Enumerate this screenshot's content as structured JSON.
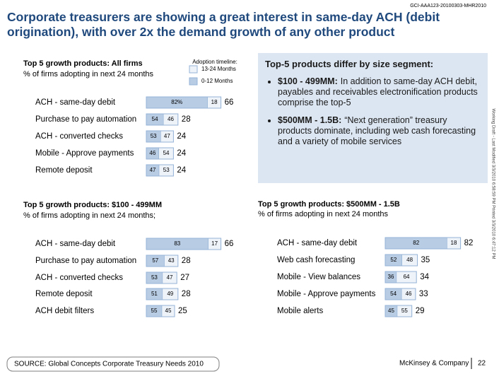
{
  "header": {
    "doc_id": "GCI-AAA123-20100303-MHR2010",
    "title": "Corporate treasurers are showing a great interest in same-day ACH (debit origination), with over 2x the demand growth of any other product"
  },
  "side_note": "Working Draft - Last Modified 3/3/2010 6:58:59 PM     Printed 3/3/2010 6:47:12 PM",
  "segment_box": {
    "title": "Top-5 products differ by size segment:",
    "bullets": [
      {
        "label": "$100 - 499MM:",
        "text": "In addition to same-day ACH debit, payables and receivables electronification products comprise the top-5"
      },
      {
        "label": "$500MM - 1.5B:",
        "text": "“Next generation” treasury products dominate, including web cash forecasting and a variety of mobile services"
      }
    ]
  },
  "chart_data": [
    {
      "type": "bar",
      "title": "Top 5 growth products:  All firms",
      "subtitle": "% of firms adopting in next 24 months",
      "legend_title": "Adoption timeline:",
      "categories": [
        "ACH - same-day debit",
        "Purchase to pay automation",
        "ACH - converted checks",
        "Mobile - Approve payments",
        "Remote deposit"
      ],
      "values": [
        66,
        28,
        24,
        24,
        24
      ],
      "series": [
        {
          "name": "0-12 Months",
          "color": "#b8cce4",
          "values": [
            82,
            54,
            53,
            46,
            47
          ],
          "value_labels": [
            "82%",
            "54",
            "53",
            "46",
            "47"
          ]
        },
        {
          "name": "13-24 Months",
          "color": "#eef3fa",
          "values": [
            18,
            46,
            47,
            54,
            53
          ]
        }
      ]
    },
    {
      "type": "bar",
      "title": "Top 5 growth products: $100 - 499MM",
      "subtitle": "% of firms adopting in next 24 months;",
      "categories": [
        "ACH - same-day debit",
        "Purchase to pay automation",
        "ACH - converted checks",
        "Remote deposit",
        "ACH debit filters"
      ],
      "values": [
        66,
        28,
        27,
        28,
        25
      ],
      "series": [
        {
          "color": "#b8cce4",
          "values": [
            83,
            57,
            53,
            51,
            55
          ]
        },
        {
          "color": "#eef3fa",
          "values": [
            17,
            43,
            47,
            49,
            45
          ]
        }
      ]
    },
    {
      "type": "bar",
      "title": "Top 5 growth products: $500MM - 1.5B",
      "subtitle": "% of firms adopting in next 24 months",
      "categories": [
        "ACH - same-day debit",
        "Web cash forecasting",
        "Mobile - View balances",
        "Mobile - Approve payments",
        "Mobile alerts"
      ],
      "values": [
        82,
        35,
        34,
        33,
        29
      ],
      "series": [
        {
          "color": "#b8cce4",
          "values": [
            82,
            52,
            36,
            54,
            45
          ]
        },
        {
          "color": "#eef3fa",
          "values": [
            18,
            48,
            64,
            46,
            55
          ]
        }
      ]
    }
  ],
  "footer": {
    "source": "SOURCE: Global Concepts Corporate Treasury Needs 2010",
    "company": "McKinsey & Company",
    "page": 22
  }
}
